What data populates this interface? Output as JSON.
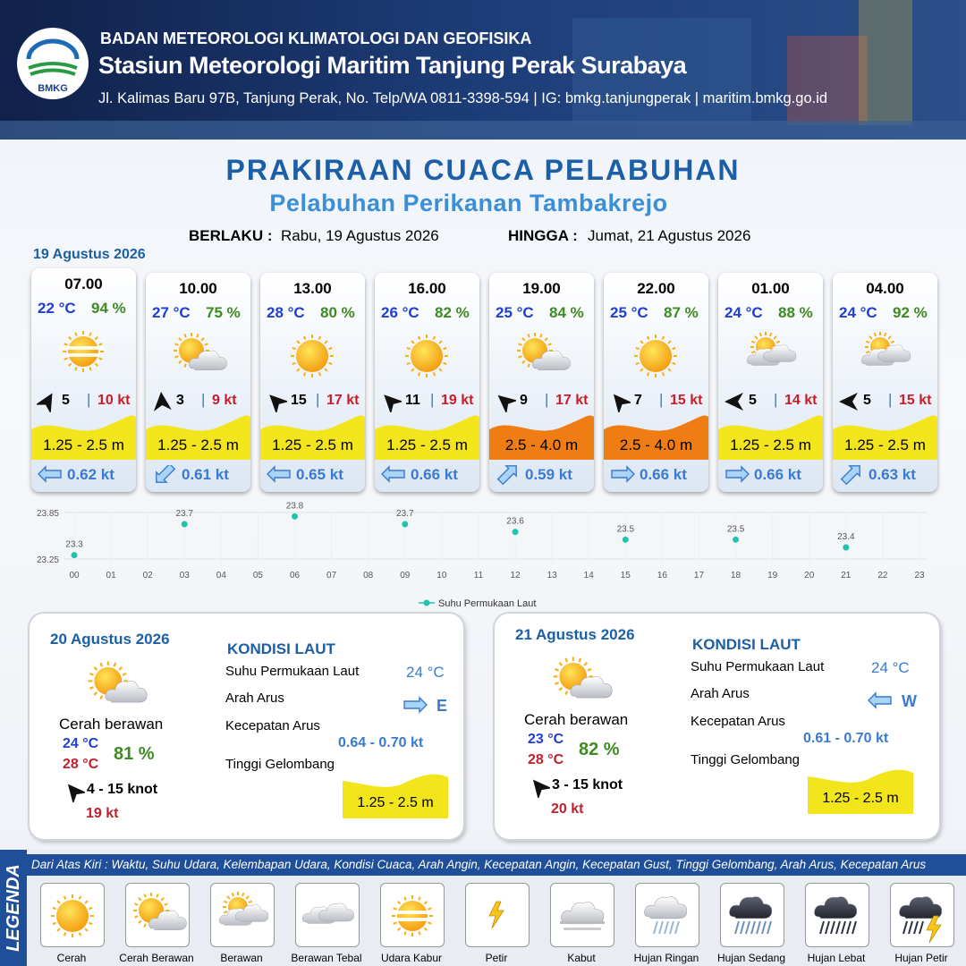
{
  "header": {
    "logo_text": "BMKG",
    "agency": "BADAN METEOROLOGI KLIMATOLOGI DAN GEOFISIKA",
    "station": "Stasiun Meteorologi Maritim Tanjung Perak Surabaya",
    "address": "Jl. Kalimas Baru 97B, Tanjung Perak, No. Telp/WA 0811-3398-594 | IG: bmkg.tanjungperak | maritim.bmkg.go.id"
  },
  "title": "PRAKIRAAN CUACA PELABUHAN",
  "subtitle": "Pelabuhan Perikanan Tambakrejo",
  "validity": {
    "from_label": "BERLAKU :",
    "from": "Rabu, 19 Agustus 2026",
    "to_label": "HINGGA :",
    "to": "Jumat, 21 Agustus 2026"
  },
  "day1_date": "19 Agustus 2026",
  "forecasts": [
    {
      "time": "07.00",
      "temp": "22 °C",
      "humidity": "94 %",
      "condition": "Udara Kabur",
      "wind": 5,
      "gust": "10 kt",
      "wave": "1.25 - 2.5 m",
      "wave_color": "#f3e51c",
      "current": "0.62 kt"
    },
    {
      "time": "10.00",
      "temp": "27 °C",
      "humidity": "75 %",
      "condition": "Cerah Berawan",
      "wind": 3,
      "gust": "9 kt",
      "wave": "1.25 - 2.5 m",
      "wave_color": "#f3e51c",
      "current": "0.61 kt"
    },
    {
      "time": "13.00",
      "temp": "28 °C",
      "humidity": "80 %",
      "condition": "Cerah",
      "wind": 15,
      "gust": "17 kt",
      "wave": "1.25 - 2.5 m",
      "wave_color": "#f3e51c",
      "current": "0.65 kt"
    },
    {
      "time": "16.00",
      "temp": "26 °C",
      "humidity": "82 %",
      "condition": "Cerah",
      "wind": 11,
      "gust": "19 kt",
      "wave": "1.25 - 2.5 m",
      "wave_color": "#f3e51c",
      "current": "0.66 kt"
    },
    {
      "time": "19.00",
      "temp": "25 °C",
      "humidity": "84 %",
      "condition": "Cerah Berawan",
      "wind": 9,
      "gust": "17 kt",
      "wave": "2.5 - 4.0 m",
      "wave_color": "#f07d14",
      "current": "0.59 kt"
    },
    {
      "time": "22.00",
      "temp": "25 °C",
      "humidity": "87 %",
      "condition": "Cerah",
      "wind": 7,
      "gust": "15 kt",
      "wave": "2.5 - 4.0 m",
      "wave_color": "#f07d14",
      "current": "0.66 kt"
    },
    {
      "time": "01.00",
      "temp": "24 °C",
      "humidity": "88 %",
      "condition": "Berawan",
      "wind": 5,
      "gust": "14 kt",
      "wave": "1.25 - 2.5 m",
      "wave_color": "#f3e51c",
      "current": "0.66 kt"
    },
    {
      "time": "04.00",
      "temp": "24 °C",
      "humidity": "92 %",
      "condition": "Berawan",
      "wind": 5,
      "gust": "15 kt",
      "wave": "1.25 - 2.5 m",
      "wave_color": "#f3e51c",
      "current": "0.63 kt"
    }
  ],
  "chart_data": {
    "type": "scatter",
    "x": [
      0,
      3,
      6,
      9,
      12,
      15,
      18,
      21
    ],
    "series": [
      {
        "name": "Suhu Permukaan Laut",
        "color": "#22c3ad",
        "values": [
          23.3,
          23.7,
          23.8,
          23.7,
          23.6,
          23.5,
          23.5,
          23.4
        ]
      }
    ],
    "xlim": [
      0,
      23
    ],
    "xticks": [
      {
        "value": 0,
        "label": "00"
      },
      {
        "value": 1,
        "label": "01"
      },
      {
        "value": 2,
        "label": "02"
      },
      {
        "value": 3,
        "label": "03"
      },
      {
        "value": 4,
        "label": "04"
      },
      {
        "value": 5,
        "label": "05"
      },
      {
        "value": 6,
        "label": "06"
      },
      {
        "value": 7,
        "label": "07"
      },
      {
        "value": 8,
        "label": "08"
      },
      {
        "value": 9,
        "label": "09"
      },
      10,
      11,
      12,
      13,
      14,
      15,
      16,
      17,
      18,
      19,
      20,
      21,
      22,
      23
    ],
    "ylim": [
      23.25,
      23.85
    ],
    "yticks": [
      23.25,
      23.85
    ],
    "grid": true
  },
  "days": [
    {
      "date": "20 Agustus 2026",
      "condition": "Cerah berawan",
      "temp_min": "24 °C",
      "temp_max": "28 °C",
      "humidity": "81 %",
      "wind": "4  - 15 knot",
      "gust": "19 kt",
      "sea_title": "KONDISI LAUT",
      "labels": [
        "Suhu Permukaan Laut",
        "Arah Arus",
        "Kecepatan Arus",
        "Tinggi Gelombang"
      ],
      "sst": "24 °C",
      "current_dir": "E",
      "current_speed": "0.64  - 0.70 kt",
      "wave": "1.25 - 2.5 m"
    },
    {
      "date": "21 Agustus 2026",
      "condition": "Cerah berawan",
      "temp_min": "23 °C",
      "temp_max": "28 °C",
      "humidity": "82 %",
      "wind": "3  - 15 knot",
      "gust": "20 kt",
      "sea_title": "KONDISI LAUT",
      "labels": [
        "Suhu Permukaan Laut",
        "Arah Arus",
        "Kecepatan Arus",
        "Tinggi Gelombang"
      ],
      "sst": "24 °C",
      "current_dir": "W",
      "current_speed": "0.61 - 0.70 kt",
      "wave": "1.25 - 2.5 m"
    }
  ],
  "legend": {
    "title": "LEGENDA",
    "note": "Dari Atas Kiri : Waktu, Suhu Udara, Kelembapan Udara, Kondisi Cuaca, Arah Angin, Kecepatan Angin, Kecepatan Gust, Tinggi Gelombang, Arah Arus, Kecepatan Arus",
    "items": [
      "Cerah",
      "Cerah Berawan",
      "Berawan",
      "Berawan Tebal",
      "Udara Kabur",
      "Petir",
      "Kabut",
      "Hujan Ringan",
      "Hujan Sedang",
      "Hujan Lebat",
      "Hujan Petir"
    ]
  }
}
